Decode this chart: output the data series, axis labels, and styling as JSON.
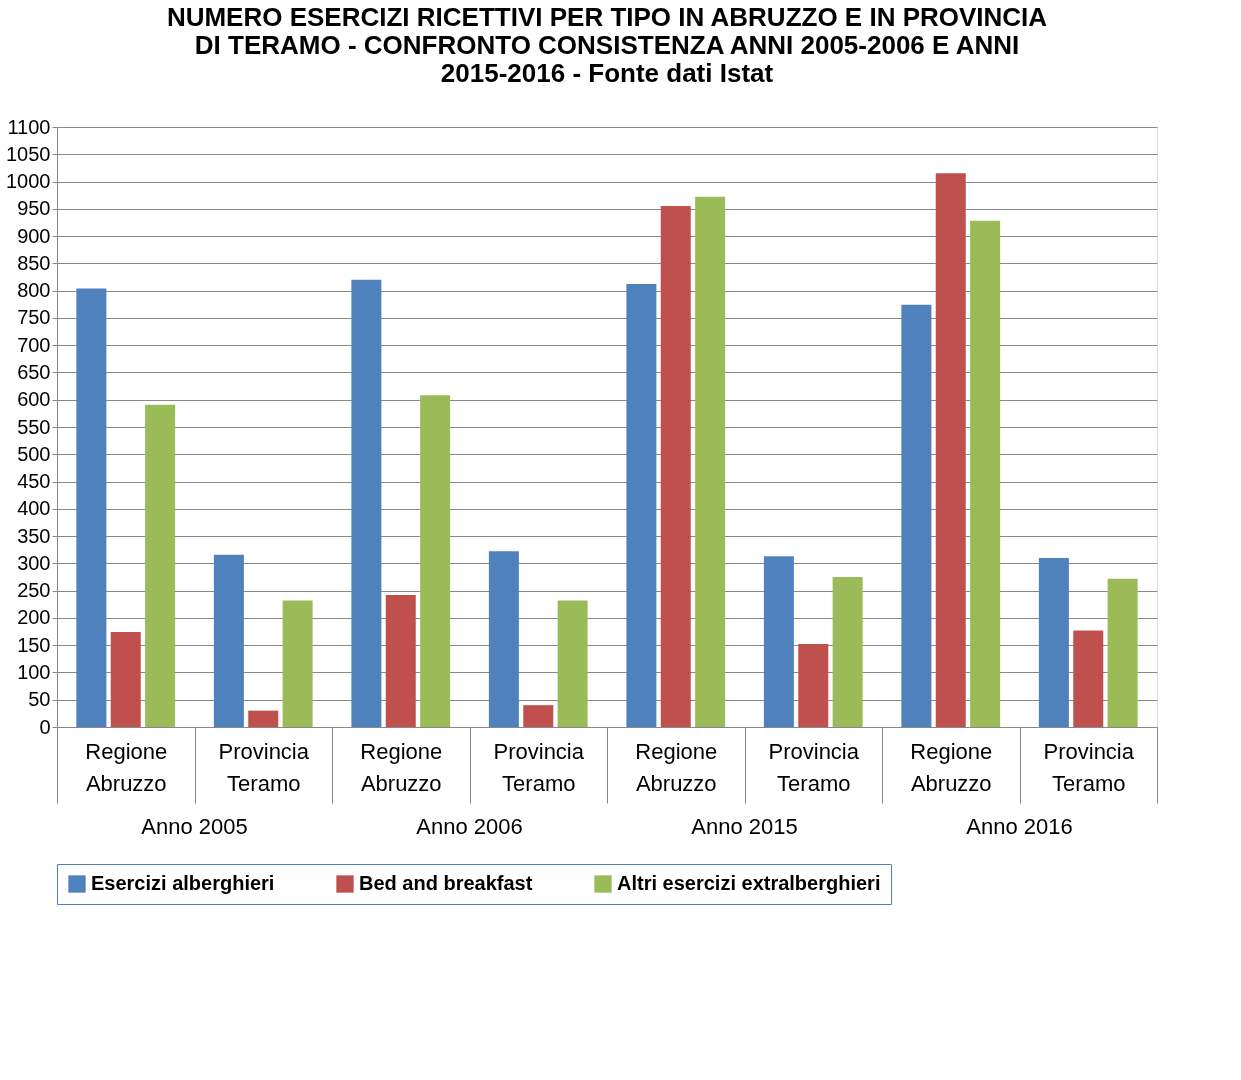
{
  "chart_data": {
    "type": "bar",
    "title": "NUMERO ESERCIZI RICETTIVI PER TIPO IN ABRUZZO E IN PROVINCIA DI TERAMO - CONFRONTO CONSISTENZA ANNI 2005-2006 E ANNI 2015-2016 - Fonte dati Istat",
    "categories": [
      "Regione Abruzzo",
      "Provincia Teramo",
      "Regione Abruzzo",
      "Provincia Teramo",
      "Regione Abruzzo",
      "Provincia Teramo",
      "Regione Abruzzo",
      "Provincia Teramo"
    ],
    "annotations": [
      "Anno 2005",
      "Anno 2006",
      "Anno 2015",
      "Anno 2016"
    ],
    "series": [
      {
        "name": "Esercizi alberghieri",
        "color": "#4f81bd",
        "values": [
          804,
          316,
          820,
          322,
          812,
          313,
          774,
          310
        ]
      },
      {
        "name": "Bed and breakfast",
        "color": "#c0504d",
        "values": [
          174,
          30,
          242,
          40,
          955,
          152,
          1015,
          177
        ]
      },
      {
        "name": "Altri esercizi extralberghieri",
        "color": "#9bbb59",
        "values": [
          591,
          232,
          608,
          232,
          972,
          275,
          928,
          272
        ]
      }
    ],
    "ylim": [
      0,
      1100
    ],
    "yticks": [
      0,
      50,
      100,
      150,
      200,
      250,
      300,
      350,
      400,
      450,
      500,
      550,
      600,
      650,
      700,
      750,
      800,
      850,
      900,
      950,
      1000,
      1050,
      1100
    ],
    "grid": "y",
    "legend": "bottom"
  }
}
